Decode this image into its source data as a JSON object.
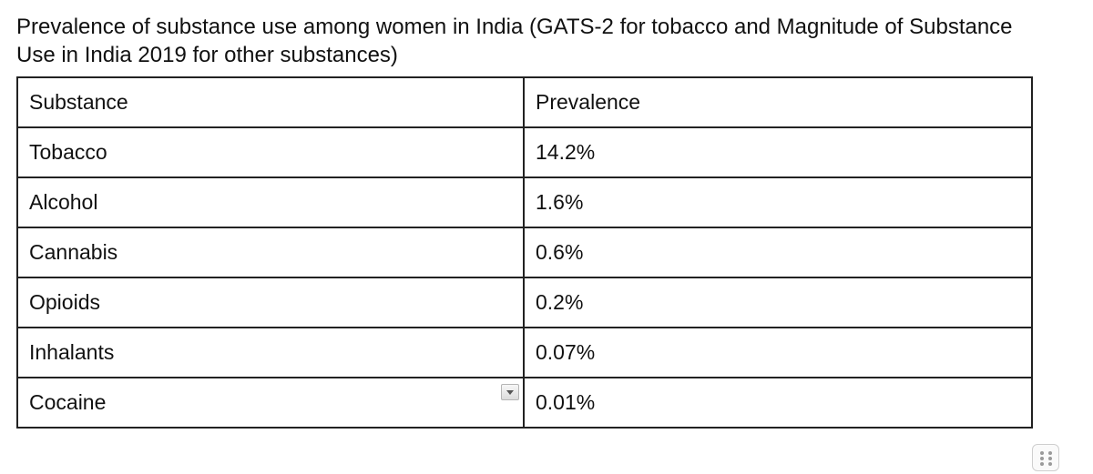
{
  "caption": "Prevalence of substance use among women in India (GATS-2 for tobacco and Magnitude of Substance Use in India 2019 for other substances)",
  "table": {
    "headers": [
      "Substance",
      "Prevalence"
    ],
    "rows": [
      [
        "Tobacco",
        "14.2%"
      ],
      [
        "Alcohol",
        "1.6%"
      ],
      [
        "Cannabis",
        "0.6%"
      ],
      [
        "Opioids",
        "0.2%"
      ],
      [
        "Inhalants",
        "0.07%"
      ],
      [
        "Cocaine",
        "0.01%"
      ]
    ]
  },
  "icons": {
    "cell_menu": "chevron-down-icon",
    "resize": "drag-handle-icon"
  }
}
